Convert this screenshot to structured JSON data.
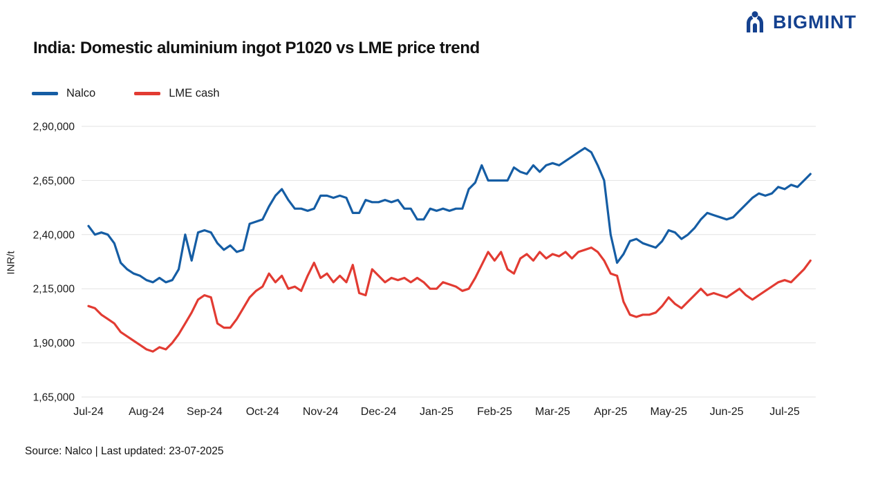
{
  "logo": {
    "text": "BIGMINT",
    "color": "#14418f"
  },
  "header": {
    "title": "India: Domestic aluminium ingot P1020 vs LME price trend"
  },
  "legend": [
    {
      "label": "Nalco",
      "color": "#155da4"
    },
    {
      "label": "LME cash",
      "color": "#e23b32"
    }
  ],
  "footer": {
    "source": "Source: Nalco | Last updated: 23-07-2025"
  },
  "chart_data": {
    "type": "line",
    "title": "India: Domestic aluminium ingot P1020 vs LME price trend",
    "xlabel": "",
    "ylabel": "INR/t",
    "ylim": [
      165000,
      290000
    ],
    "grid": true,
    "legend_position": "top-left",
    "yticks": [
      {
        "value": 290000,
        "label": "2,90,000"
      },
      {
        "value": 265000,
        "label": "2,65,000"
      },
      {
        "value": 240000,
        "label": "2,40,000"
      },
      {
        "value": 215000,
        "label": "2,15,000"
      },
      {
        "value": 190000,
        "label": "1,90,000"
      },
      {
        "value": 165000,
        "label": "1,65,000"
      }
    ],
    "categories": [
      "Jul-24",
      "Aug-24",
      "Sep-24",
      "Oct-24",
      "Nov-24",
      "Dec-24",
      "Jan-25",
      "Feb-25",
      "Mar-25",
      "Apr-25",
      "May-25",
      "Jun-25",
      "Jul-25"
    ],
    "points_per_month": 9,
    "series": [
      {
        "name": "Nalco",
        "color": "#155da4",
        "values": [
          244000,
          240000,
          241000,
          240000,
          236000,
          227000,
          224000,
          222000,
          221000,
          219000,
          218000,
          220000,
          218000,
          219000,
          224000,
          240000,
          228000,
          241000,
          242000,
          241000,
          236000,
          233000,
          235000,
          232000,
          233000,
          245000,
          246000,
          247000,
          253000,
          258000,
          261000,
          256000,
          252000,
          252000,
          251000,
          252000,
          258000,
          258000,
          257000,
          258000,
          257000,
          250000,
          250000,
          256000,
          255000,
          255000,
          256000,
          255000,
          256000,
          252000,
          252000,
          247000,
          247000,
          252000,
          251000,
          252000,
          251000,
          252000,
          252000,
          261000,
          264000,
          272000,
          265000,
          265000,
          265000,
          265000,
          271000,
          269000,
          268000,
          272000,
          269000,
          272000,
          273000,
          272000,
          274000,
          276000,
          278000,
          280000,
          278000,
          272000,
          265000,
          240000,
          227000,
          231000,
          237000,
          238000,
          236000,
          235000,
          234000,
          237000,
          242000,
          241000,
          238000,
          240000,
          243000,
          247000,
          250000,
          249000,
          248000,
          247000,
          248000,
          251000,
          254000,
          257000,
          259000,
          258000,
          259000,
          262000,
          261000,
          263000,
          262000,
          265000,
          268000
        ]
      },
      {
        "name": "LME cash",
        "color": "#e23b32",
        "values": [
          207000,
          206000,
          203000,
          201000,
          199000,
          195000,
          193000,
          191000,
          189000,
          187000,
          186000,
          188000,
          187000,
          190000,
          194000,
          199000,
          204000,
          210000,
          212000,
          211000,
          199000,
          197000,
          197000,
          201000,
          206000,
          211000,
          214000,
          216000,
          222000,
          218000,
          221000,
          215000,
          216000,
          214000,
          221000,
          227000,
          220000,
          222000,
          218000,
          221000,
          218000,
          226000,
          213000,
          212000,
          224000,
          221000,
          218000,
          220000,
          219000,
          220000,
          218000,
          220000,
          218000,
          215000,
          215000,
          218000,
          217000,
          216000,
          214000,
          215000,
          220000,
          226000,
          232000,
          228000,
          232000,
          224000,
          222000,
          229000,
          231000,
          228000,
          232000,
          229000,
          231000,
          230000,
          232000,
          229000,
          232000,
          233000,
          234000,
          232000,
          228000,
          222000,
          221000,
          209000,
          203000,
          202000,
          203000,
          203000,
          204000,
          207000,
          211000,
          208000,
          206000,
          209000,
          212000,
          215000,
          212000,
          213000,
          212000,
          211000,
          213000,
          215000,
          212000,
          210000,
          212000,
          214000,
          216000,
          218000,
          219000,
          218000,
          221000,
          224000,
          228000
        ]
      }
    ]
  }
}
